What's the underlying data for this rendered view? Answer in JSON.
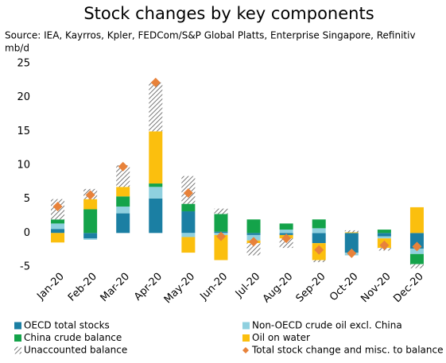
{
  "chart_data": {
    "type": "bar",
    "stacked": true,
    "title": "Stock changes by key components",
    "subtitle": "Source: IEA, Kayrros, Kpler, FEDCom/S&P Global Platts, Enterprise Singapore, Refinitiv",
    "y_label": "mb/d",
    "categories": [
      "Jan-20",
      "Feb-20",
      "Mar-20",
      "Apr-20",
      "May-20",
      "Jun-20",
      "Jul-20",
      "Aug-20",
      "Sep-20",
      "Oct-20",
      "Nov-20",
      "Dec-20"
    ],
    "series": [
      {
        "name": "OECD total stocks",
        "color": "#1b7fa3",
        "values": [
          0.6,
          -0.8,
          2.9,
          5.1,
          3.2,
          0.2,
          -0.3,
          -0.3,
          -1.5,
          -2.9,
          -0.5,
          -2.3
        ]
      },
      {
        "name": "Non-OECD crude oil excl. China",
        "color": "#8fd0df",
        "values": [
          0.8,
          -0.2,
          1.0,
          1.7,
          -0.6,
          -0.3,
          -0.8,
          0.5,
          0.7,
          -0.4,
          -0.3,
          -0.8
        ]
      },
      {
        "name": "China crude balance",
        "color": "#14a34a",
        "values": [
          0.6,
          3.5,
          1.5,
          0.5,
          1.1,
          2.6,
          2.0,
          0.9,
          1.3,
          0.0,
          0.5,
          -1.5
        ]
      },
      {
        "name": "Oil on water",
        "color": "#fbbf0e",
        "values": [
          -1.4,
          1.5,
          1.4,
          7.7,
          -2.3,
          -3.7,
          -0.4,
          -0.5,
          -2.5,
          0.1,
          -1.4,
          3.8
        ]
      },
      {
        "name": "Unaccounted balance",
        "color": "#555555",
        "pattern": "hatch",
        "values": [
          3.0,
          1.5,
          3.2,
          7.2,
          4.1,
          0.8,
          -1.8,
          -1.4,
          -0.3,
          0.3,
          -0.4,
          -0.6
        ]
      },
      {
        "name": "Total stock change and misc. to balance",
        "color": "#e8823a",
        "type": "scatter",
        "marker": "diamond",
        "values": [
          3.9,
          5.6,
          9.8,
          22.2,
          5.9,
          -0.5,
          -1.3,
          -0.8,
          -2.5,
          -3.0,
          -1.8,
          -2.0
        ]
      }
    ],
    "ylim": [
      -5,
      25
    ],
    "yticks": [
      -5,
      0,
      5,
      10,
      15,
      20,
      25
    ],
    "grid": false,
    "legend": "bottom"
  }
}
